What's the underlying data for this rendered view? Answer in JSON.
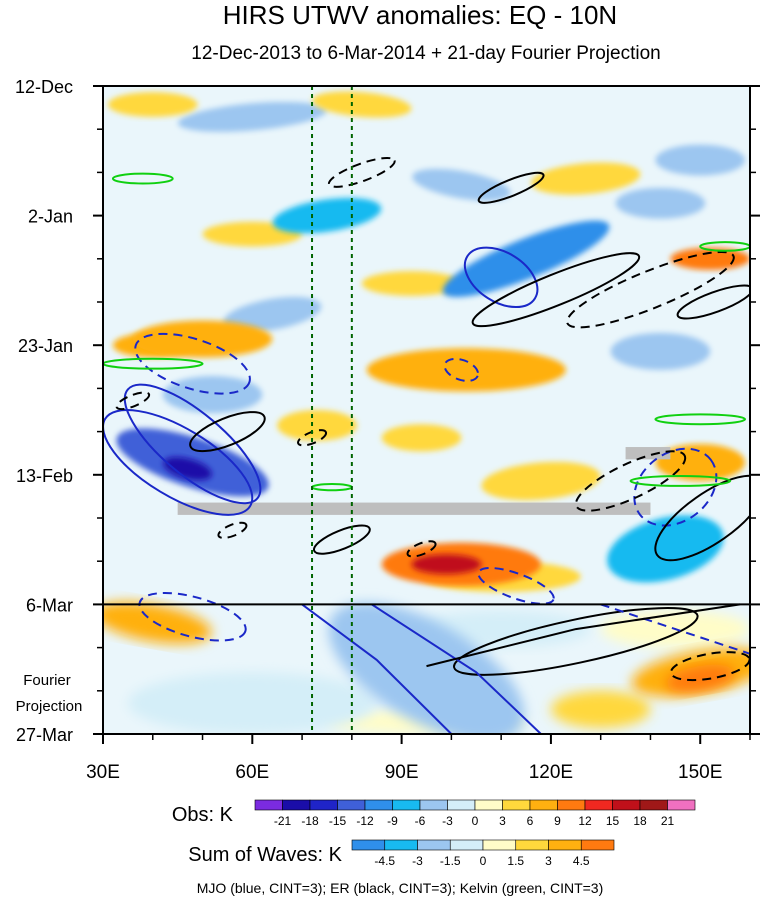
{
  "chart_data": {
    "type": "heatmap",
    "title": "HIRS UTWV anomalies: EQ - 10N",
    "subtitle": "12-Dec-2013 to 6-Mar-2014 + 21-day Fourier Projection",
    "x_axis": {
      "range": [
        30,
        160
      ],
      "units": "degrees E longitude",
      "ticks": [
        {
          "value": 30,
          "label": "30E"
        },
        {
          "value": 60,
          "label": "60E"
        },
        {
          "value": 90,
          "label": "90E"
        },
        {
          "value": 120,
          "label": "120E"
        },
        {
          "value": 150,
          "label": "150E"
        }
      ]
    },
    "y_axis": {
      "range_days": [
        0,
        105
      ],
      "units": "days since 12-Dec-2013",
      "ticks": [
        {
          "day": 0,
          "label": "12-Dec"
        },
        {
          "day": 21,
          "label": "2-Jan"
        },
        {
          "day": 42,
          "label": "23-Jan"
        },
        {
          "day": 63,
          "label": "13-Feb"
        },
        {
          "day": 84,
          "label": "6-Mar"
        },
        {
          "day": 105,
          "label": "27-Mar"
        }
      ],
      "projection_start_day": 84,
      "projection_label": [
        "Fourier",
        "Projection"
      ]
    },
    "reference_lines_lon": [
      72,
      80
    ],
    "missing_data": [
      {
        "lon": [
          45,
          140
        ],
        "day": [
          67.5,
          69.5
        ]
      },
      {
        "lon": [
          135,
          144
        ],
        "day": [
          58.5,
          60.5
        ]
      }
    ],
    "anomaly_features": [
      {
        "lon": 48,
        "day": 61,
        "rx": 16,
        "ry": 4,
        "rot": 18,
        "value": -14
      },
      {
        "lon": 47,
        "day": 62,
        "rx": 5,
        "ry": 1.6,
        "rot": 15,
        "value": -20
      },
      {
        "lon": 60,
        "day": 5,
        "rx": 15,
        "ry": 2.2,
        "rot": -5,
        "value": -5
      },
      {
        "lon": 115,
        "day": 28,
        "rx": 18,
        "ry": 3.2,
        "rot": -22,
        "value": -10
      },
      {
        "lon": 142,
        "day": 43,
        "rx": 10,
        "ry": 3,
        "rot": 0,
        "value": -6
      },
      {
        "lon": 75,
        "day": 21,
        "rx": 11,
        "ry": 2.6,
        "rot": -8,
        "value": -8
      },
      {
        "lon": 143,
        "day": 75,
        "rx": 12,
        "ry": 5,
        "rot": -15,
        "value": -8
      },
      {
        "lon": 52,
        "day": 50,
        "rx": 10,
        "ry": 3,
        "rot": 0,
        "value": -6
      },
      {
        "lon": 102,
        "day": 16,
        "rx": 10,
        "ry": 2.2,
        "rot": 10,
        "value": -6
      },
      {
        "lon": 142,
        "day": 19,
        "rx": 9,
        "ry": 2.5,
        "rot": 0,
        "value": -6
      },
      {
        "lon": 64,
        "day": 37,
        "rx": 10,
        "ry": 2.5,
        "rot": -10,
        "value": -5
      },
      {
        "lon": 150,
        "day": 12,
        "rx": 9,
        "ry": 2.5,
        "rot": 0,
        "value": -5
      },
      {
        "lon": 127,
        "day": 15,
        "rx": 11,
        "ry": 2.5,
        "rot": -5,
        "value": 5
      },
      {
        "lon": 50,
        "day": 41,
        "rx": 14,
        "ry": 3,
        "rot": 0,
        "value": 8
      },
      {
        "lon": 103,
        "day": 46,
        "rx": 20,
        "ry": 3.5,
        "rot": 0,
        "value": 8
      },
      {
        "lon": 73,
        "day": 55,
        "rx": 8,
        "ry": 2.5,
        "rot": 0,
        "value": 5
      },
      {
        "lon": 94,
        "day": 57,
        "rx": 8,
        "ry": 2.2,
        "rot": 0,
        "value": 4
      },
      {
        "lon": 102,
        "day": 77.5,
        "rx": 16,
        "ry": 3.5,
        "rot": 0,
        "value": 11
      },
      {
        "lon": 99,
        "day": 77.5,
        "rx": 7,
        "ry": 1.6,
        "rot": 0,
        "value": 15
      },
      {
        "lon": 150,
        "day": 61,
        "rx": 9,
        "ry": 3,
        "rot": 0,
        "value": 7
      },
      {
        "lon": 110,
        "day": 79.5,
        "rx": 16,
        "ry": 2.5,
        "rot": 0,
        "value": 5
      },
      {
        "lon": 152,
        "day": 28,
        "rx": 8,
        "ry": 1.8,
        "rot": 0,
        "value": 9
      },
      {
        "lon": 40,
        "day": 42,
        "rx": 8,
        "ry": 2,
        "rot": 0,
        "value": 7
      },
      {
        "lon": 118,
        "day": 64,
        "rx": 12,
        "ry": 3,
        "rot": -5,
        "value": 5
      },
      {
        "lon": 40,
        "day": 3,
        "rx": 9,
        "ry": 2,
        "rot": 0,
        "value": 5
      },
      {
        "lon": 82,
        "day": 3,
        "rx": 10,
        "ry": 2,
        "rot": 5,
        "value": 5
      },
      {
        "lon": 92,
        "day": 32,
        "rx": 10,
        "ry": 2,
        "rot": 0,
        "value": 5
      },
      {
        "lon": 60,
        "day": 24,
        "rx": 10,
        "ry": 2,
        "rot": 0,
        "value": 4
      }
    ],
    "projection_features": [
      {
        "lon": 40,
        "day": 87,
        "rx": 12,
        "ry": 3,
        "rot": 10,
        "value": 3
      },
      {
        "lon": 130,
        "day": 101,
        "rx": 10,
        "ry": 3,
        "rot": 0,
        "value": 2.5
      },
      {
        "lon": 150,
        "day": 95,
        "rx": 14,
        "ry": 3.5,
        "rot": -10,
        "value": 4
      },
      {
        "lon": 150,
        "day": 96,
        "rx": 7,
        "ry": 2,
        "rot": -10,
        "value": 5
      },
      {
        "lon": 95,
        "day": 95,
        "rx": 22,
        "ry": 8,
        "rot": 30,
        "value": -2
      },
      {
        "lon": 60,
        "day": 100,
        "rx": 25,
        "ry": 5,
        "rot": 0,
        "value": -1
      },
      {
        "lon": 110,
        "day": 88,
        "rx": 18,
        "ry": 3,
        "rot": 0,
        "value": -1
      },
      {
        "lon": 145,
        "day": 88,
        "rx": 15,
        "ry": 3,
        "rot": 0,
        "value": 1
      },
      {
        "lon": 95,
        "day": 103,
        "rx": 20,
        "ry": 2,
        "rot": 0,
        "value": 0.8
      }
    ],
    "wave_contours": [
      {
        "wave": "MJO",
        "sign": "positive",
        "lon": 45,
        "day": 61,
        "rx": 17,
        "ry": 5.5,
        "rot": 31
      },
      {
        "wave": "MJO",
        "sign": "positive",
        "lon": 110,
        "day": 31,
        "rx": 8,
        "ry": 4,
        "rot": 32
      },
      {
        "wave": "MJO",
        "sign": "negative",
        "lon": 48,
        "day": 45,
        "rx": 12,
        "ry": 4,
        "rot": 18
      },
      {
        "wave": "MJO",
        "sign": "negative",
        "lon": 102,
        "day": 46,
        "rx": 3.5,
        "ry": 1.6,
        "rot": 20
      },
      {
        "wave": "MJO",
        "sign": "negative",
        "lon": 145,
        "day": 65,
        "rx": 9,
        "ry": 5.5,
        "rot": -38
      },
      {
        "wave": "MJO",
        "sign": "negative",
        "lon": 113,
        "day": 81,
        "rx": 8,
        "ry": 2,
        "rot": 20
      },
      {
        "wave": "MJO",
        "sign": "negative",
        "lon": 48,
        "day": 86,
        "rx": 11,
        "ry": 3.2,
        "rot": 15
      },
      {
        "wave": "MJO",
        "sign": "positive",
        "lon": 48,
        "day": 58,
        "rx": 17,
        "ry": 5,
        "rot": 40
      },
      {
        "wave": "ER",
        "sign": "positive",
        "lon": 112,
        "day": 16.5,
        "rx": 7,
        "ry": 1.3,
        "rot": -22
      },
      {
        "wave": "ER",
        "sign": "positive",
        "lon": 121,
        "day": 33,
        "rx": 18,
        "ry": 2.5,
        "rot": -22
      },
      {
        "wave": "ER",
        "sign": "positive",
        "lon": 55,
        "day": 56,
        "rx": 8,
        "ry": 2.2,
        "rot": -22
      },
      {
        "wave": "ER",
        "sign": "positive",
        "lon": 78,
        "day": 73.5,
        "rx": 6,
        "ry": 1.5,
        "rot": -22
      },
      {
        "wave": "ER",
        "sign": "positive",
        "lon": 153,
        "day": 35,
        "rx": 8,
        "ry": 1.6,
        "rot": -20
      },
      {
        "wave": "ER",
        "sign": "positive",
        "lon": 152,
        "day": 70,
        "rx": 13,
        "ry": 4,
        "rot": -35
      },
      {
        "wave": "ER",
        "sign": "positive",
        "lon": 125,
        "day": 90,
        "rx": 25,
        "ry": 3.5,
        "rot": -12
      },
      {
        "wave": "ER",
        "sign": "negative",
        "lon": 82,
        "day": 14,
        "rx": 7,
        "ry": 1.4,
        "rot": -20
      },
      {
        "wave": "ER",
        "sign": "negative",
        "lon": 140,
        "day": 33,
        "rx": 18,
        "ry": 3,
        "rot": -22
      },
      {
        "wave": "ER",
        "sign": "negative",
        "lon": 72,
        "day": 57,
        "rx": 3,
        "ry": 0.9,
        "rot": -22
      },
      {
        "wave": "ER",
        "sign": "negative",
        "lon": 136,
        "day": 64,
        "rx": 12,
        "ry": 2.8,
        "rot": -25
      },
      {
        "wave": "ER",
        "sign": "negative",
        "lon": 56,
        "day": 72,
        "rx": 3,
        "ry": 0.9,
        "rot": -22
      },
      {
        "wave": "ER",
        "sign": "negative",
        "lon": 94,
        "day": 75,
        "rx": 3,
        "ry": 0.9,
        "rot": -22
      },
      {
        "wave": "ER",
        "sign": "negative",
        "lon": 36,
        "day": 51,
        "rx": 3.5,
        "ry": 0.9,
        "rot": -22
      },
      {
        "wave": "ER",
        "sign": "negative",
        "lon": 152,
        "day": 94,
        "rx": 8,
        "ry": 2,
        "rot": -10
      },
      {
        "wave": "Kelvin",
        "sign": "positive",
        "lon": 38,
        "day": 15,
        "rx": 6,
        "ry": 0.8,
        "rot": 0
      },
      {
        "wave": "Kelvin",
        "sign": "positive",
        "lon": 40,
        "day": 45,
        "rx": 10,
        "ry": 0.8,
        "rot": 0
      },
      {
        "wave": "Kelvin",
        "sign": "positive",
        "lon": 150,
        "day": 54,
        "rx": 9,
        "ry": 0.8,
        "rot": 0
      },
      {
        "wave": "Kelvin",
        "sign": "positive",
        "lon": 146,
        "day": 64,
        "rx": 10,
        "ry": 0.8,
        "rot": 0
      },
      {
        "wave": "Kelvin",
        "sign": "positive",
        "lon": 155,
        "day": 26,
        "rx": 5,
        "ry": 0.7,
        "rot": 0
      },
      {
        "wave": "Kelvin",
        "sign": "positive",
        "lon": 76,
        "day": 65,
        "rx": 4,
        "ry": 0.5,
        "rot": 0
      }
    ],
    "projection_lines_mjo": [
      {
        "points": [
          [
            70,
            84
          ],
          [
            85,
            93
          ],
          [
            100,
            105
          ]
        ]
      },
      {
        "points": [
          [
            84,
            84
          ],
          [
            105,
            95
          ],
          [
            118,
            105
          ]
        ]
      }
    ],
    "projection_lines_mjo_dashed": [
      {
        "points": [
          [
            130,
            84
          ],
          [
            145,
            88
          ],
          [
            160,
            92
          ]
        ]
      }
    ],
    "projection_lines_er": [
      {
        "points": [
          [
            95,
            94
          ],
          [
            125,
            88
          ],
          [
            158,
            84
          ]
        ]
      }
    ],
    "colorbars": [
      {
        "name": "Obs: K",
        "levels": [
          -21,
          -18,
          -15,
          -12,
          -9,
          -6,
          -3,
          0,
          3,
          6,
          9,
          12,
          15,
          18,
          21
        ],
        "colors": [
          "#7B2BE0",
          "#1A0DA8",
          "#1F24C8",
          "#3F60D8",
          "#2F8FEA",
          "#18BAF0",
          "#9CC6F0",
          "#D4EEF8",
          "#FFFDC8",
          "#FFD83C",
          "#FFB010",
          "#FF7A10",
          "#F02820",
          "#C0101A",
          "#A01818",
          "#F070C0"
        ]
      },
      {
        "name": "Sum of Waves: K",
        "levels": [
          -4.5,
          -3,
          -1.5,
          0,
          1.5,
          3,
          4.5
        ],
        "colors": [
          "#2F8FEA",
          "#18BAF0",
          "#9CC6F0",
          "#D4EEF8",
          "#FFFDC8",
          "#FFD83C",
          "#FFB010",
          "#FF7A10"
        ]
      }
    ],
    "caption": "MJO (blue, CINT=3); ER (black, CINT=3); Kelvin (green, CINT=3)",
    "wave_colors": {
      "MJO": "#1A28C8",
      "ER": "#000000",
      "Kelvin": "#10D010",
      "ref_line": "#006400"
    }
  }
}
